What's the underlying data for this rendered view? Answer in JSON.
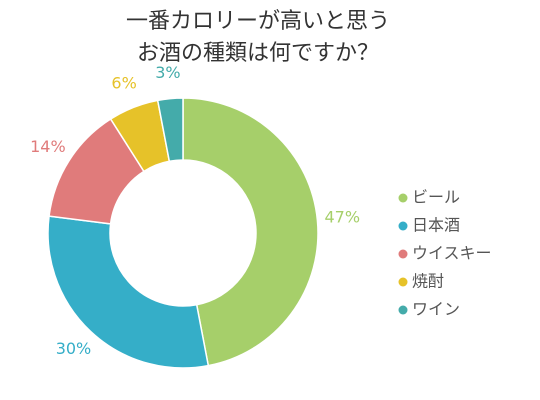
{
  "chart_data": {
    "type": "donut",
    "title": [
      "一番カロリーが高いと思う",
      "お酒の種類は何ですか？"
    ],
    "categories": [
      "ビール",
      "日本酒",
      "ウイスキー",
      "焼酎",
      "ワイン"
    ],
    "values": [
      47,
      30,
      14,
      6,
      3
    ],
    "value_labels": [
      "47%",
      "30%",
      "14%",
      "6%",
      "3%"
    ],
    "colors": [
      "#a6cf6a",
      "#35aec8",
      "#e07b7b",
      "#e6c229",
      "#44abaa"
    ],
    "legend": "right"
  }
}
